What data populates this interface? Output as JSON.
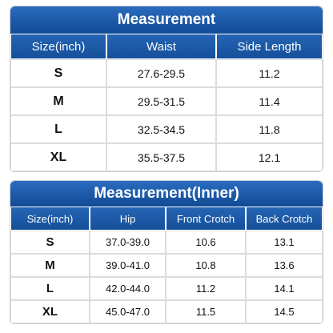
{
  "tables": [
    {
      "title": "Measurement",
      "headers": [
        "Size(inch)",
        "Waist",
        "Side Length"
      ],
      "rows": [
        [
          "S",
          "27.6-29.5",
          "11.2"
        ],
        [
          "M",
          "29.5-31.5",
          "11.4"
        ],
        [
          "L",
          "32.5-34.5",
          "11.8"
        ],
        [
          "XL",
          "35.5-37.5",
          "12.1"
        ]
      ]
    },
    {
      "title": "Measurement(Inner)",
      "headers": [
        "Size(inch)",
        "Hip",
        "Front Crotch",
        "Back Crotch"
      ],
      "rows": [
        [
          "S",
          "37.0-39.0",
          "10.6",
          "13.1"
        ],
        [
          "M",
          "39.0-41.0",
          "10.8",
          "13.6"
        ],
        [
          "L",
          "42.0-44.0",
          "11.2",
          "14.1"
        ],
        [
          "XL",
          "45.0-47.0",
          "11.5",
          "14.5"
        ]
      ]
    }
  ]
}
